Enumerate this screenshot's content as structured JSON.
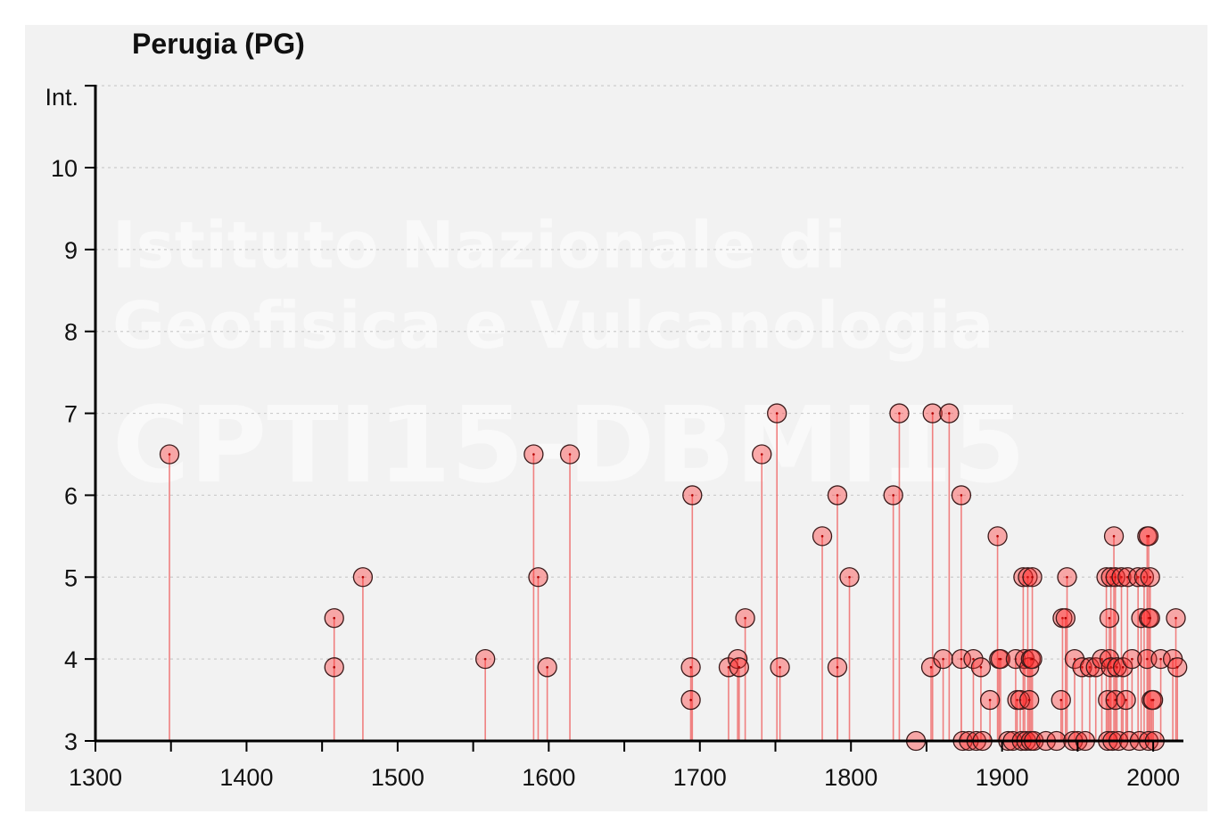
{
  "chart_data": {
    "type": "scatter",
    "title": "Perugia (PG)",
    "ylabel": "Int.",
    "xlabel": "",
    "xlim": [
      1300,
      2020
    ],
    "ylim": [
      3,
      11
    ],
    "x_ticks": [
      1300,
      1400,
      1500,
      1600,
      1700,
      1800,
      1900,
      2000
    ],
    "y_ticks": [
      3,
      4,
      5,
      6,
      7,
      8,
      9,
      10
    ],
    "grid": "horizontal dotted",
    "marker_style": "red circle with vertical stem to baseline",
    "colors": {
      "marker": "#ff2a2a",
      "stem": "#f08080",
      "axis": "#000000",
      "grid": "#cccccc",
      "background": "#f2f2f2"
    },
    "watermark": [
      "Istituto Nazionale di",
      "Geofisica e Vulcanologia",
      "CPTI15-DBMI15"
    ],
    "points": [
      [
        1349,
        6.5
      ],
      [
        1458,
        4.5
      ],
      [
        1458,
        3.9
      ],
      [
        1477,
        5.0
      ],
      [
        1558,
        4.0
      ],
      [
        1590,
        6.5
      ],
      [
        1593,
        5.0
      ],
      [
        1599,
        3.9
      ],
      [
        1614,
        6.5
      ],
      [
        1694,
        3.9
      ],
      [
        1694,
        3.5
      ],
      [
        1695,
        6.0
      ],
      [
        1719,
        3.9
      ],
      [
        1725,
        4.0
      ],
      [
        1726,
        3.9
      ],
      [
        1730,
        4.5
      ],
      [
        1741,
        6.5
      ],
      [
        1751,
        7.0
      ],
      [
        1753,
        3.9
      ],
      [
        1781,
        5.5
      ],
      [
        1791,
        6.0
      ],
      [
        1791,
        3.9
      ],
      [
        1799,
        5.0
      ],
      [
        1828,
        6.0
      ],
      [
        1832,
        7.0
      ],
      [
        1843,
        3.0
      ],
      [
        1853,
        3.9
      ],
      [
        1854,
        7.0
      ],
      [
        1861,
        4.0
      ],
      [
        1865,
        7.0
      ],
      [
        1873,
        6.0
      ],
      [
        1873,
        4.0
      ],
      [
        1874,
        3.0
      ],
      [
        1878,
        3.0
      ],
      [
        1881,
        4.0
      ],
      [
        1883,
        3.0
      ],
      [
        1886,
        3.9
      ],
      [
        1887,
        3.0
      ],
      [
        1892,
        3.5
      ],
      [
        1897,
        5.5
      ],
      [
        1898,
        4.0
      ],
      [
        1899,
        4.0
      ],
      [
        1904,
        3.0
      ],
      [
        1907,
        3.0
      ],
      [
        1909,
        4.0
      ],
      [
        1910,
        3.5
      ],
      [
        1912,
        3.5
      ],
      [
        1913,
        3.0
      ],
      [
        1914,
        5.0
      ],
      [
        1915,
        4.0
      ],
      [
        1916,
        3.0
      ],
      [
        1917,
        5.0
      ],
      [
        1918,
        3.9
      ],
      [
        1918,
        3.5
      ],
      [
        1919,
        4.0
      ],
      [
        1919,
        3.0
      ],
      [
        1920,
        5.0
      ],
      [
        1920,
        4.0
      ],
      [
        1921,
        3.0
      ],
      [
        1929,
        3.0
      ],
      [
        1936,
        3.0
      ],
      [
        1939,
        3.5
      ],
      [
        1940,
        4.5
      ],
      [
        1942,
        4.5
      ],
      [
        1943,
        5.0
      ],
      [
        1947,
        3.0
      ],
      [
        1948,
        4.0
      ],
      [
        1950,
        3.0
      ],
      [
        1953,
        3.9
      ],
      [
        1955,
        3.0
      ],
      [
        1958,
        3.9
      ],
      [
        1962,
        3.9
      ],
      [
        1966,
        4.0
      ],
      [
        1969,
        5.0
      ],
      [
        1970,
        3.5
      ],
      [
        1970,
        3.0
      ],
      [
        1971,
        4.5
      ],
      [
        1971,
        4.0
      ],
      [
        1972,
        5.0
      ],
      [
        1972,
        3.9
      ],
      [
        1973,
        3.0
      ],
      [
        1974,
        5.5
      ],
      [
        1975,
        5.0
      ],
      [
        1975,
        3.5
      ],
      [
        1976,
        3.9
      ],
      [
        1977,
        3.0
      ],
      [
        1979,
        5.0
      ],
      [
        1980,
        3.9
      ],
      [
        1982,
        3.5
      ],
      [
        1983,
        5.0
      ],
      [
        1984,
        3.0
      ],
      [
        1986,
        4.0
      ],
      [
        1990,
        5.0
      ],
      [
        1991,
        3.0
      ],
      [
        1992,
        4.5
      ],
      [
        1994,
        5.0
      ],
      [
        1996,
        5.5
      ],
      [
        1996,
        4.0
      ],
      [
        1997,
        5.5
      ],
      [
        1997,
        4.5
      ],
      [
        1997,
        3.0
      ],
      [
        1998,
        5.0
      ],
      [
        1998,
        4.5
      ],
      [
        1999,
        3.5
      ],
      [
        2000,
        3.5
      ],
      [
        2001,
        3.0
      ],
      [
        2005,
        4.0
      ],
      [
        2013,
        4.0
      ],
      [
        2015,
        4.5
      ],
      [
        2016,
        3.9
      ]
    ]
  }
}
